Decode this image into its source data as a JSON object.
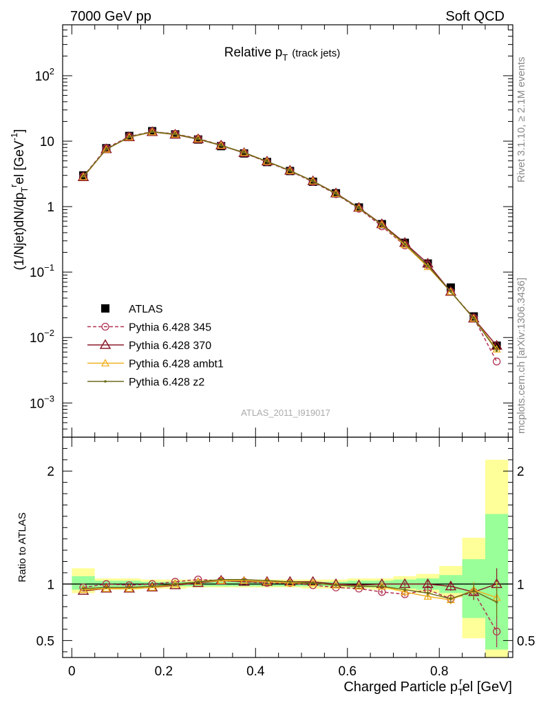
{
  "header": {
    "left": "7000 GeV pp",
    "right": "Soft QCD"
  },
  "side_labels": {
    "rivet": "Rivet 3.1.10, ≥ 2.1M events",
    "mcplots": "mcplots.cern.ch [arXiv:1306.3436]"
  },
  "chart_data": [
    {
      "type": "line",
      "title": "Relative p",
      "title_sub": "T",
      "title_suffix": "(track jets)",
      "ylabel": "(1/Njet)dN/dp",
      "ylabel_sub": "T",
      "ylabel_sup": "r",
      "ylabel_suffix": "el [GeV",
      "ylabel_unit_sup": "-1",
      "ylabel_close": "]",
      "watermark": "ATLAS_2011_I919017",
      "yscale": "log",
      "ylim": [
        0.0003,
        600
      ],
      "xlim": [
        -0.02,
        0.96
      ],
      "y_tick_labels": [
        {
          "value": 0.001,
          "base": "10",
          "exp": "−3"
        },
        {
          "value": 0.01,
          "base": "10",
          "exp": "−2"
        },
        {
          "value": 0.1,
          "base": "10",
          "exp": "−1"
        },
        {
          "value": 1,
          "base": "1",
          "exp": ""
        },
        {
          "value": 10,
          "base": "10",
          "exp": ""
        },
        {
          "value": 100,
          "base": "10",
          "exp": "2"
        }
      ],
      "x": [
        0.025,
        0.075,
        0.125,
        0.175,
        0.225,
        0.275,
        0.325,
        0.375,
        0.425,
        0.475,
        0.525,
        0.575,
        0.625,
        0.675,
        0.725,
        0.775,
        0.825,
        0.875,
        0.925
      ],
      "legend_placement": "bottom-left",
      "series": [
        {
          "name": "ATLAS",
          "color": "#000000",
          "marker": "square",
          "values": [
            3.0,
            7.8,
            12.0,
            14.2,
            12.7,
            10.6,
            8.4,
            6.5,
            4.8,
            3.5,
            2.4,
            1.6,
            0.97,
            0.54,
            0.28,
            0.135,
            0.058,
            0.021,
            0.0075
          ]
        },
        {
          "name": "Pythia 6.428 345",
          "color": "#b03050",
          "marker": "circle",
          "dash": "5,3",
          "values": [
            2.9,
            7.8,
            11.8,
            14.0,
            12.9,
            11.0,
            8.7,
            6.6,
            4.8,
            3.5,
            2.38,
            1.55,
            0.93,
            0.5,
            0.255,
            0.128,
            0.05,
            0.02,
            0.0043
          ]
        },
        {
          "name": "Pythia 6.428 370",
          "color": "#8b1a2a",
          "marker": "triangle",
          "values": [
            2.82,
            7.55,
            11.5,
            13.8,
            12.6,
            10.7,
            8.6,
            6.6,
            4.9,
            3.55,
            2.45,
            1.6,
            0.96,
            0.54,
            0.28,
            0.135,
            0.05,
            0.0195,
            0.0075
          ]
        },
        {
          "name": "Pythia 6.428 ambt1",
          "color": "#f0b020",
          "marker": "triangle-small",
          "values": [
            2.85,
            7.5,
            11.5,
            13.8,
            12.7,
            10.8,
            8.6,
            6.7,
            4.9,
            3.55,
            2.45,
            1.58,
            0.95,
            0.53,
            0.26,
            0.12,
            0.05,
            0.0195,
            0.0066
          ]
        },
        {
          "name": "Pythia 6.428 z2",
          "color": "#6b6b1a",
          "marker": "dot",
          "values": [
            2.88,
            7.5,
            11.6,
            13.9,
            12.8,
            10.8,
            8.6,
            6.7,
            4.9,
            3.55,
            2.45,
            1.58,
            0.95,
            0.53,
            0.27,
            0.125,
            0.05,
            0.0195,
            0.0063
          ]
        }
      ]
    },
    {
      "type": "line",
      "ylabel": "Ratio to ATLAS",
      "xlabel": "Charged Particle p",
      "xlabel_sub": "T",
      "xlabel_sup": "r",
      "xlabel_suffix": "el [GeV]",
      "ylim": [
        0.35,
        2.3
      ],
      "xlim": [
        -0.02,
        0.96
      ],
      "y_ticks": [
        0.5,
        1,
        2
      ],
      "y_tick_labels": [
        "0.5",
        "1",
        "2"
      ],
      "x_ticks": [
        0,
        0.2,
        0.4,
        0.6,
        0.8
      ],
      "x_tick_labels": [
        "0",
        "0.2",
        "0.4",
        "0.6",
        "0.8"
      ],
      "bins": [
        0.0,
        0.05,
        0.1,
        0.15,
        0.2,
        0.25,
        0.3,
        0.35,
        0.4,
        0.45,
        0.5,
        0.55,
        0.6,
        0.65,
        0.7,
        0.75,
        0.8,
        0.85,
        0.9,
        0.95
      ],
      "band_yellow": [
        [
          0.92,
          1.14
        ],
        [
          0.95,
          1.05
        ],
        [
          0.95,
          1.05
        ],
        [
          0.96,
          1.04
        ],
        [
          0.96,
          1.04
        ],
        [
          0.97,
          1.04
        ],
        [
          0.97,
          1.04
        ],
        [
          0.97,
          1.04
        ],
        [
          0.97,
          1.04
        ],
        [
          0.97,
          1.04
        ],
        [
          0.96,
          1.04
        ],
        [
          0.96,
          1.04
        ],
        [
          0.96,
          1.05
        ],
        [
          0.95,
          1.05
        ],
        [
          0.94,
          1.07
        ],
        [
          0.92,
          1.09
        ],
        [
          0.88,
          1.16
        ],
        [
          0.52,
          1.41
        ],
        [
          0.32,
          2.1
        ]
      ],
      "band_green": [
        [
          0.95,
          1.07
        ],
        [
          0.97,
          1.03
        ],
        [
          0.97,
          1.03
        ],
        [
          0.98,
          1.02
        ],
        [
          0.98,
          1.02
        ],
        [
          0.98,
          1.02
        ],
        [
          0.98,
          1.02
        ],
        [
          0.98,
          1.02
        ],
        [
          0.98,
          1.02
        ],
        [
          0.98,
          1.02
        ],
        [
          0.98,
          1.02
        ],
        [
          0.98,
          1.02
        ],
        [
          0.97,
          1.03
        ],
        [
          0.97,
          1.03
        ],
        [
          0.96,
          1.04
        ],
        [
          0.95,
          1.05
        ],
        [
          0.92,
          1.08
        ],
        [
          0.7,
          1.22
        ],
        [
          0.42,
          1.62
        ]
      ],
      "x": [
        0.025,
        0.075,
        0.125,
        0.175,
        0.225,
        0.275,
        0.325,
        0.375,
        0.425,
        0.475,
        0.525,
        0.575,
        0.625,
        0.675,
        0.725,
        0.775,
        0.825,
        0.875,
        0.925
      ],
      "series": [
        {
          "name": "Pythia 6.428 345",
          "color": "#b03050",
          "marker": "circle",
          "dash": "5,3",
          "values": [
            0.97,
            1.0,
            0.99,
            1.0,
            1.02,
            1.04,
            1.03,
            1.02,
            1.01,
            1.01,
            0.99,
            0.97,
            0.96,
            0.93,
            0.91,
            0.95,
            0.87,
            0.93,
            0.58
          ],
          "errors": [
            0.01,
            0.01,
            0.01,
            0.01,
            0.01,
            0.01,
            0.01,
            0.01,
            0.01,
            0.01,
            0.01,
            0.01,
            0.01,
            0.02,
            0.02,
            0.03,
            0.04,
            0.07,
            0.14
          ]
        },
        {
          "name": "Pythia 6.428 370",
          "color": "#8b1a2a",
          "marker": "triangle",
          "values": [
            0.94,
            0.96,
            0.96,
            0.97,
            0.99,
            1.01,
            1.03,
            1.02,
            1.02,
            1.02,
            1.02,
            1.0,
            0.99,
            1.0,
            1.0,
            1.0,
            0.98,
            0.93,
            1.0
          ],
          "errors": [
            0.01,
            0.01,
            0.01,
            0.01,
            0.01,
            0.01,
            0.01,
            0.01,
            0.01,
            0.01,
            0.01,
            0.01,
            0.01,
            0.02,
            0.02,
            0.03,
            0.04,
            0.07,
            0.14
          ]
        },
        {
          "name": "Pythia 6.428 ambt1",
          "color": "#f0b020",
          "marker": "triangle-small",
          "values": [
            0.95,
            0.96,
            0.96,
            0.97,
            1.0,
            1.02,
            1.03,
            1.03,
            1.02,
            1.01,
            1.01,
            0.99,
            0.98,
            0.98,
            0.93,
            0.89,
            0.86,
            0.95,
            0.88
          ],
          "errors": [
            0.01,
            0.01,
            0.01,
            0.01,
            0.01,
            0.01,
            0.01,
            0.01,
            0.01,
            0.01,
            0.01,
            0.01,
            0.01,
            0.02,
            0.02,
            0.03,
            0.04,
            0.07,
            0.14
          ]
        },
        {
          "name": "Pythia 6.428 z2",
          "color": "#6b6b1a",
          "marker": "dot",
          "values": [
            0.96,
            0.97,
            0.97,
            0.98,
            1.0,
            1.02,
            1.04,
            1.04,
            1.03,
            1.02,
            1.01,
            0.99,
            0.98,
            0.98,
            0.95,
            0.92,
            0.87,
            0.94,
            0.84
          ],
          "errors": [
            0.01,
            0.01,
            0.01,
            0.01,
            0.01,
            0.01,
            0.01,
            0.01,
            0.01,
            0.01,
            0.01,
            0.01,
            0.01,
            0.02,
            0.02,
            0.03,
            0.04,
            0.07,
            0.14
          ]
        }
      ]
    }
  ]
}
